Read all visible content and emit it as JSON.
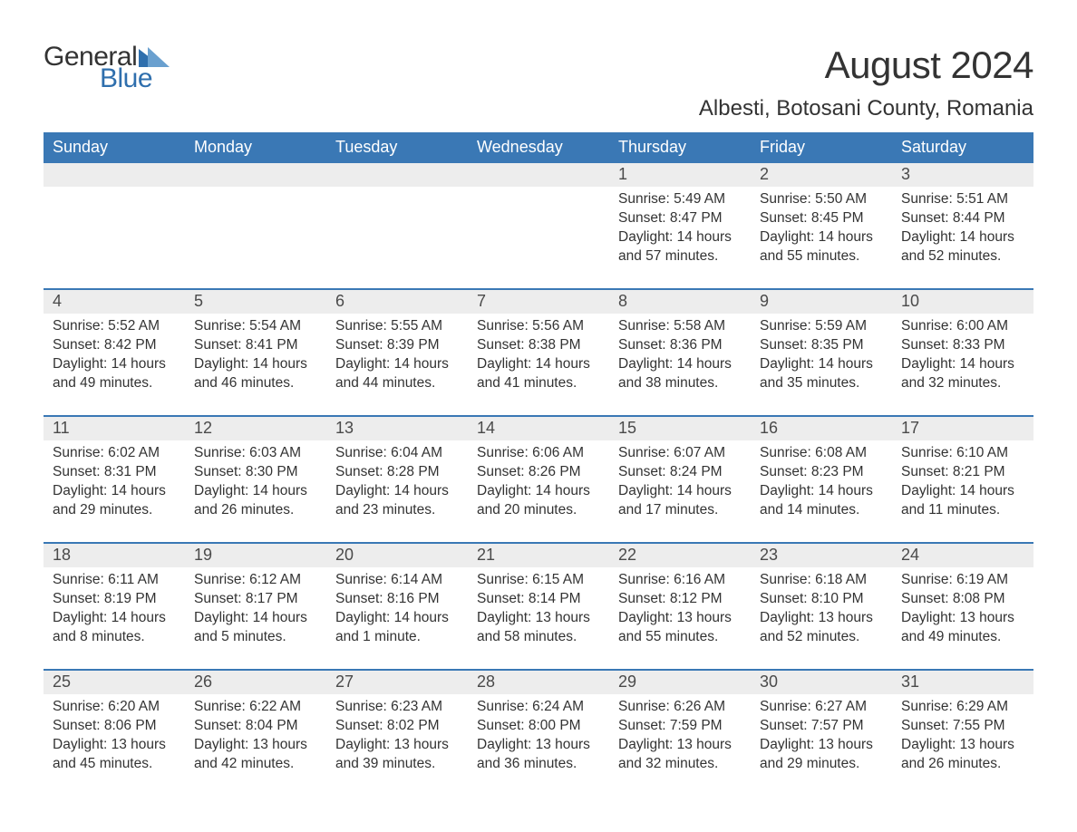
{
  "brand": {
    "word1": "General",
    "word2": "Blue",
    "accent_color": "#2f6fad",
    "text_color": "#333333"
  },
  "title": "August 2024",
  "location": "Albesti, Botosani County, Romania",
  "colors": {
    "header_bg": "#3a78b5",
    "header_text": "#ffffff",
    "daynum_bg": "#ededed",
    "body_text": "#333333",
    "rule": "#3a78b5",
    "page_bg": "#ffffff"
  },
  "typography": {
    "title_fontsize": 42,
    "location_fontsize": 24,
    "dow_fontsize": 18,
    "daynum_fontsize": 18,
    "cell_fontsize": 15.5
  },
  "days_of_week": [
    "Sunday",
    "Monday",
    "Tuesday",
    "Wednesday",
    "Thursday",
    "Friday",
    "Saturday"
  ],
  "weeks": [
    [
      null,
      null,
      null,
      null,
      {
        "n": "1",
        "sunrise": "5:49 AM",
        "sunset": "8:47 PM",
        "daylight": "14 hours and 57 minutes."
      },
      {
        "n": "2",
        "sunrise": "5:50 AM",
        "sunset": "8:45 PM",
        "daylight": "14 hours and 55 minutes."
      },
      {
        "n": "3",
        "sunrise": "5:51 AM",
        "sunset": "8:44 PM",
        "daylight": "14 hours and 52 minutes."
      }
    ],
    [
      {
        "n": "4",
        "sunrise": "5:52 AM",
        "sunset": "8:42 PM",
        "daylight": "14 hours and 49 minutes."
      },
      {
        "n": "5",
        "sunrise": "5:54 AM",
        "sunset": "8:41 PM",
        "daylight": "14 hours and 46 minutes."
      },
      {
        "n": "6",
        "sunrise": "5:55 AM",
        "sunset": "8:39 PM",
        "daylight": "14 hours and 44 minutes."
      },
      {
        "n": "7",
        "sunrise": "5:56 AM",
        "sunset": "8:38 PM",
        "daylight": "14 hours and 41 minutes."
      },
      {
        "n": "8",
        "sunrise": "5:58 AM",
        "sunset": "8:36 PM",
        "daylight": "14 hours and 38 minutes."
      },
      {
        "n": "9",
        "sunrise": "5:59 AM",
        "sunset": "8:35 PM",
        "daylight": "14 hours and 35 minutes."
      },
      {
        "n": "10",
        "sunrise": "6:00 AM",
        "sunset": "8:33 PM",
        "daylight": "14 hours and 32 minutes."
      }
    ],
    [
      {
        "n": "11",
        "sunrise": "6:02 AM",
        "sunset": "8:31 PM",
        "daylight": "14 hours and 29 minutes."
      },
      {
        "n": "12",
        "sunrise": "6:03 AM",
        "sunset": "8:30 PM",
        "daylight": "14 hours and 26 minutes."
      },
      {
        "n": "13",
        "sunrise": "6:04 AM",
        "sunset": "8:28 PM",
        "daylight": "14 hours and 23 minutes."
      },
      {
        "n": "14",
        "sunrise": "6:06 AM",
        "sunset": "8:26 PM",
        "daylight": "14 hours and 20 minutes."
      },
      {
        "n": "15",
        "sunrise": "6:07 AM",
        "sunset": "8:24 PM",
        "daylight": "14 hours and 17 minutes."
      },
      {
        "n": "16",
        "sunrise": "6:08 AM",
        "sunset": "8:23 PM",
        "daylight": "14 hours and 14 minutes."
      },
      {
        "n": "17",
        "sunrise": "6:10 AM",
        "sunset": "8:21 PM",
        "daylight": "14 hours and 11 minutes."
      }
    ],
    [
      {
        "n": "18",
        "sunrise": "6:11 AM",
        "sunset": "8:19 PM",
        "daylight": "14 hours and 8 minutes."
      },
      {
        "n": "19",
        "sunrise": "6:12 AM",
        "sunset": "8:17 PM",
        "daylight": "14 hours and 5 minutes."
      },
      {
        "n": "20",
        "sunrise": "6:14 AM",
        "sunset": "8:16 PM",
        "daylight": "14 hours and 1 minute."
      },
      {
        "n": "21",
        "sunrise": "6:15 AM",
        "sunset": "8:14 PM",
        "daylight": "13 hours and 58 minutes."
      },
      {
        "n": "22",
        "sunrise": "6:16 AM",
        "sunset": "8:12 PM",
        "daylight": "13 hours and 55 minutes."
      },
      {
        "n": "23",
        "sunrise": "6:18 AM",
        "sunset": "8:10 PM",
        "daylight": "13 hours and 52 minutes."
      },
      {
        "n": "24",
        "sunrise": "6:19 AM",
        "sunset": "8:08 PM",
        "daylight": "13 hours and 49 minutes."
      }
    ],
    [
      {
        "n": "25",
        "sunrise": "6:20 AM",
        "sunset": "8:06 PM",
        "daylight": "13 hours and 45 minutes."
      },
      {
        "n": "26",
        "sunrise": "6:22 AM",
        "sunset": "8:04 PM",
        "daylight": "13 hours and 42 minutes."
      },
      {
        "n": "27",
        "sunrise": "6:23 AM",
        "sunset": "8:02 PM",
        "daylight": "13 hours and 39 minutes."
      },
      {
        "n": "28",
        "sunrise": "6:24 AM",
        "sunset": "8:00 PM",
        "daylight": "13 hours and 36 minutes."
      },
      {
        "n": "29",
        "sunrise": "6:26 AM",
        "sunset": "7:59 PM",
        "daylight": "13 hours and 32 minutes."
      },
      {
        "n": "30",
        "sunrise": "6:27 AM",
        "sunset": "7:57 PM",
        "daylight": "13 hours and 29 minutes."
      },
      {
        "n": "31",
        "sunrise": "6:29 AM",
        "sunset": "7:55 PM",
        "daylight": "13 hours and 26 minutes."
      }
    ]
  ],
  "labels": {
    "sunrise": "Sunrise:",
    "sunset": "Sunset:",
    "daylight": "Daylight:"
  }
}
